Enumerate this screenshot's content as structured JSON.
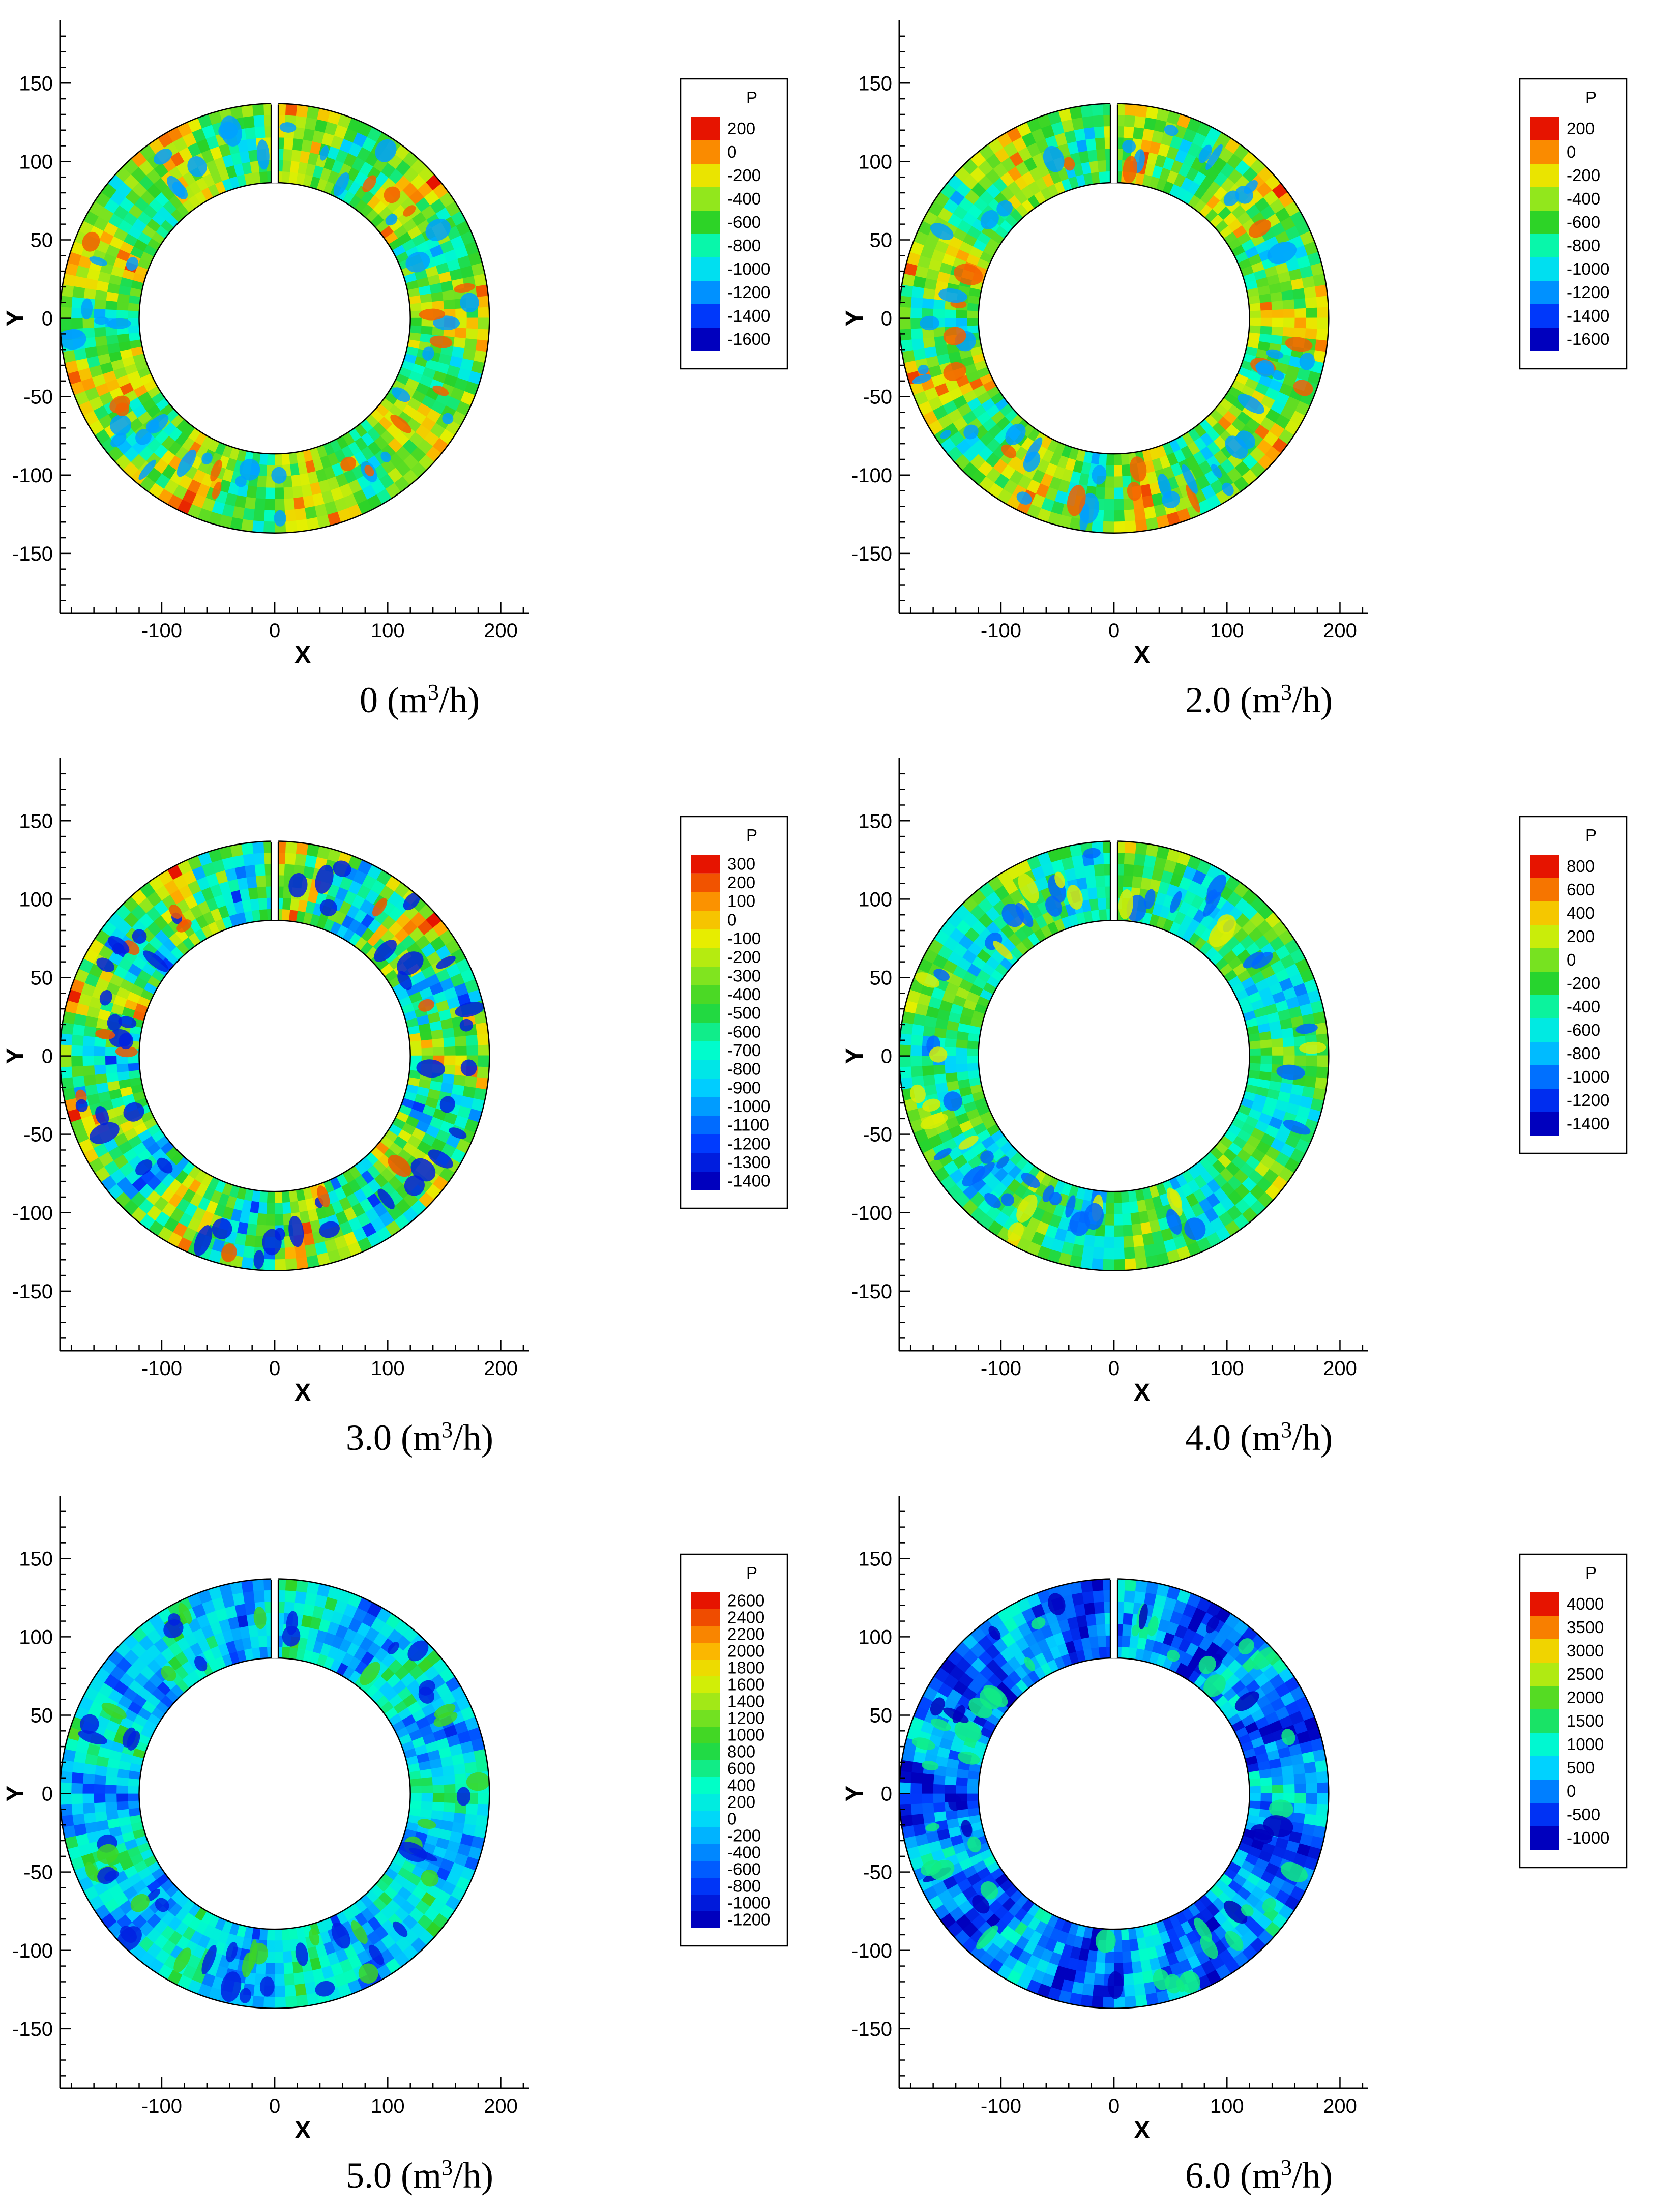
{
  "figure": {
    "description_units": "m³/h"
  },
  "colors": {
    "red": "#e60000",
    "orange": "#ff8c00",
    "yellow": "#ffff00",
    "green": "#22cc22",
    "cyan": "#00ffff",
    "blue": "#0033ff",
    "navy": "#0000aa"
  },
  "chart_data": [
    {
      "type": "heatmap",
      "subtype": "annular-contour",
      "caption_value": "0",
      "caption_unit": "(m",
      "caption_sup": "3",
      "caption_tail": "/h)",
      "xlabel": "X",
      "ylabel": "Y",
      "xlim": [
        -190,
        225
      ],
      "ylim": [
        -188,
        190
      ],
      "xticks": [
        -100,
        0,
        100,
        200
      ],
      "yticks": [
        -150,
        -100,
        -50,
        0,
        50,
        100,
        150
      ],
      "inner_radius": 120,
      "outer_radius": 190,
      "legend_title": "P",
      "levels": [
        200,
        0,
        -200,
        -400,
        -600,
        -800,
        -1000,
        -1200,
        -1400,
        -1600
      ],
      "dominant": "green",
      "seed": 11
    },
    {
      "type": "heatmap",
      "subtype": "annular-contour",
      "caption_value": "2.0",
      "caption_unit": "(m",
      "caption_sup": "3",
      "caption_tail": "/h)",
      "xlabel": "X",
      "ylabel": "Y",
      "xlim": [
        -190,
        225
      ],
      "ylim": [
        -188,
        190
      ],
      "xticks": [
        -100,
        0,
        100,
        200
      ],
      "yticks": [
        -150,
        -100,
        -50,
        0,
        50,
        100,
        150
      ],
      "inner_radius": 120,
      "outer_radius": 190,
      "legend_title": "P",
      "levels": [
        200,
        0,
        -200,
        -400,
        -600,
        -800,
        -1000,
        -1200,
        -1400,
        -1600
      ],
      "dominant": "green",
      "seed": 23
    },
    {
      "type": "heatmap",
      "subtype": "annular-contour",
      "caption_value": "3.0",
      "caption_unit": "(m",
      "caption_sup": "3",
      "caption_tail": "/h)",
      "xlabel": "X",
      "ylabel": "Y",
      "xlim": [
        -190,
        225
      ],
      "ylim": [
        -188,
        190
      ],
      "xticks": [
        -100,
        0,
        100,
        200
      ],
      "yticks": [
        -150,
        -100,
        -50,
        0,
        50,
        100,
        150
      ],
      "inner_radius": 120,
      "outer_radius": 190,
      "legend_title": "P",
      "levels": [
        300,
        200,
        100,
        0,
        -100,
        -200,
        -300,
        -400,
        -500,
        -600,
        -700,
        -800,
        -900,
        -1000,
        -1100,
        -1200,
        -1300,
        -1400
      ],
      "dominant": "green-blue",
      "seed": 37
    },
    {
      "type": "heatmap",
      "subtype": "annular-contour",
      "caption_value": "4.0",
      "caption_unit": "(m",
      "caption_sup": "3",
      "caption_tail": "/h)",
      "xlabel": "X",
      "ylabel": "Y",
      "xlim": [
        -190,
        225
      ],
      "ylim": [
        -188,
        190
      ],
      "xticks": [
        -100,
        0,
        100,
        200
      ],
      "yticks": [
        -150,
        -100,
        -50,
        0,
        50,
        100,
        150
      ],
      "inner_radius": 120,
      "outer_radius": 190,
      "legend_title": "P",
      "levels": [
        800,
        600,
        400,
        200,
        0,
        -200,
        -400,
        -600,
        -800,
        -1000,
        -1200,
        -1400
      ],
      "dominant": "green-cyan",
      "seed": 53
    },
    {
      "type": "heatmap",
      "subtype": "annular-contour",
      "caption_value": "5.0",
      "caption_unit": "(m",
      "caption_sup": "3",
      "caption_tail": "/h)",
      "xlabel": "X",
      "ylabel": "Y",
      "xlim": [
        -190,
        225
      ],
      "ylim": [
        -188,
        190
      ],
      "xticks": [
        -100,
        0,
        100,
        200
      ],
      "yticks": [
        -150,
        -100,
        -50,
        0,
        50,
        100,
        150
      ],
      "inner_radius": 120,
      "outer_radius": 190,
      "legend_title": "P",
      "levels": [
        2600,
        2400,
        2200,
        2000,
        1800,
        1600,
        1400,
        1200,
        1000,
        800,
        600,
        400,
        200,
        0,
        -200,
        -400,
        -600,
        -800,
        -1000,
        -1200
      ],
      "dominant": "cyan",
      "seed": 71
    },
    {
      "type": "heatmap",
      "subtype": "annular-contour",
      "caption_value": "6.0",
      "caption_unit": "(m",
      "caption_sup": "3",
      "caption_tail": "/h)",
      "xlabel": "X",
      "ylabel": "Y",
      "xlim": [
        -190,
        225
      ],
      "ylim": [
        -188,
        190
      ],
      "xticks": [
        -100,
        0,
        100,
        200
      ],
      "yticks": [
        -150,
        -100,
        -50,
        0,
        50,
        100,
        150
      ],
      "inner_radius": 120,
      "outer_radius": 190,
      "legend_title": "P",
      "levels": [
        4000,
        3500,
        3000,
        2500,
        2000,
        1500,
        1000,
        500,
        0,
        -500,
        -1000
      ],
      "dominant": "blue",
      "seed": 89
    }
  ]
}
